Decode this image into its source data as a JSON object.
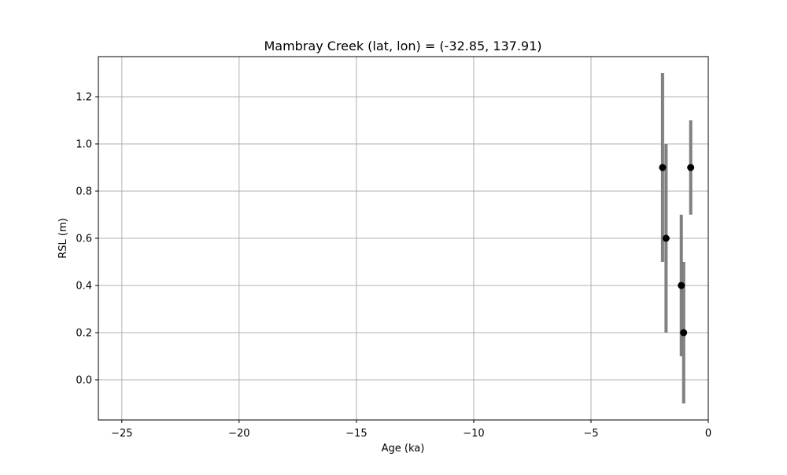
{
  "chart_data": {
    "type": "scatter",
    "title": "Mambray Creek (lat, lon) = (-32.85, 137.91)",
    "xlabel": "Age (ka)",
    "ylabel": "RSL (m)",
    "xlim": [
      -26.0,
      0.0
    ],
    "ylim": [
      -0.17,
      1.37
    ],
    "grid": true,
    "x_ticks": [
      -25,
      -20,
      -15,
      -10,
      -5,
      0
    ],
    "x_tick_labels": [
      "−25",
      "−20",
      "−15",
      "−10",
      "−5",
      "0"
    ],
    "y_ticks": [
      0.0,
      0.2,
      0.4,
      0.6,
      0.8,
      1.0,
      1.2
    ],
    "y_tick_labels": [
      "0.0",
      "0.2",
      "0.4",
      "0.6",
      "0.8",
      "1.0",
      "1.2"
    ],
    "series": [
      {
        "marker_color": "#000000",
        "errorbar_color": "#808080",
        "points": [
          {
            "x": -1.95,
            "y": 0.9,
            "y_low": 0.5,
            "y_high": 1.3
          },
          {
            "x": -1.8,
            "y": 0.6,
            "y_low": 0.2,
            "y_high": 1.0
          },
          {
            "x": -1.15,
            "y": 0.4,
            "y_low": 0.1,
            "y_high": 0.7
          },
          {
            "x": -1.05,
            "y": 0.2,
            "y_low": -0.1,
            "y_high": 0.5
          },
          {
            "x": -0.75,
            "y": 0.9,
            "y_low": 0.7,
            "y_high": 1.1
          }
        ]
      }
    ]
  },
  "colors": {
    "grid": "#b0b0b0",
    "axes": "#000000",
    "background": "#ffffff"
  }
}
